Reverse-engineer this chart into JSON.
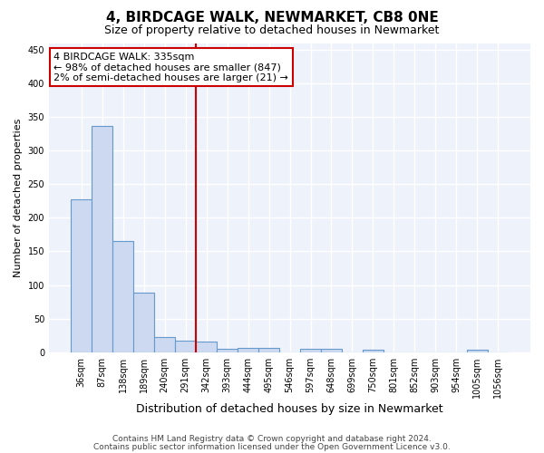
{
  "title": "4, BIRDCAGE WALK, NEWMARKET, CB8 0NE",
  "subtitle": "Size of property relative to detached houses in Newmarket",
  "xlabel": "Distribution of detached houses by size in Newmarket",
  "ylabel": "Number of detached properties",
  "bar_color": "#ccd9f0",
  "bar_edge_color": "#6699cc",
  "categories": [
    "36sqm",
    "87sqm",
    "138sqm",
    "189sqm",
    "240sqm",
    "291sqm",
    "342sqm",
    "393sqm",
    "444sqm",
    "495sqm",
    "546sqm",
    "597sqm",
    "648sqm",
    "699sqm",
    "750sqm",
    "801sqm",
    "852sqm",
    "903sqm",
    "954sqm",
    "1005sqm",
    "1056sqm"
  ],
  "values": [
    227,
    337,
    165,
    89,
    23,
    17,
    16,
    5,
    7,
    7,
    0,
    5,
    5,
    0,
    4,
    0,
    0,
    0,
    0,
    4,
    0
  ],
  "vline_index": 6,
  "vline_color": "#cc0000",
  "annotation_line1": "4 BIRDCAGE WALK: 335sqm",
  "annotation_line2": "← 98% of detached houses are smaller (847)",
  "annotation_line3": "2% of semi-detached houses are larger (21) →",
  "annotation_box_color": "white",
  "annotation_box_edge": "#cc0000",
  "ylim": [
    0,
    460
  ],
  "yticks": [
    0,
    50,
    100,
    150,
    200,
    250,
    300,
    350,
    400,
    450
  ],
  "footnote1": "Contains HM Land Registry data © Crown copyright and database right 2024.",
  "footnote2": "Contains public sector information licensed under the Open Government Licence v3.0.",
  "bg_color": "#eef2fb",
  "grid_color": "white",
  "title_fontsize": 11,
  "subtitle_fontsize": 9,
  "ylabel_fontsize": 8,
  "xlabel_fontsize": 9,
  "tick_fontsize": 7,
  "annot_fontsize": 8,
  "footnote_fontsize": 6.5
}
